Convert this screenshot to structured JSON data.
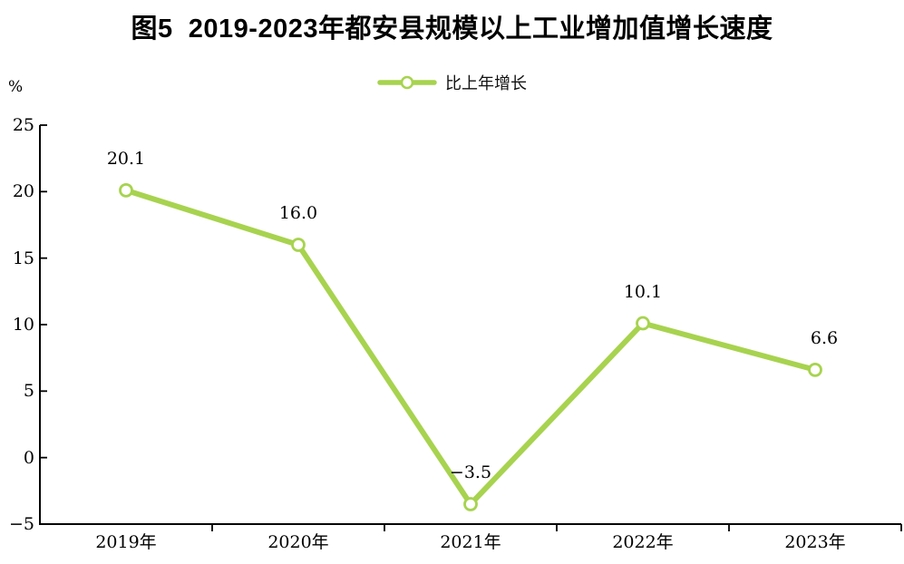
{
  "chart_data": {
    "type": "line",
    "title": "图5  2019-2023年都安县规模以上工业增加值增长速度",
    "categories": [
      "2019年",
      "2020年",
      "2021年",
      "2022年",
      "2023年"
    ],
    "series": [
      {
        "name": "比上年增长",
        "values": [
          20.1,
          16.0,
          -3.5,
          10.1,
          6.6
        ]
      }
    ],
    "data_labels": [
      "20.1",
      "16.0",
      "−3.5",
      "10.1",
      "6.6"
    ],
    "xlabel": "",
    "ylabel": "%",
    "ylim": [
      -5,
      25
    ],
    "yticks": [
      25,
      20,
      15,
      10,
      5,
      0,
      -5
    ],
    "ytick_labels": [
      "25",
      "20",
      "15",
      "10",
      "5",
      "0",
      "−5"
    ],
    "grid": false,
    "legend_position": "top-center",
    "colors": {
      "line": "#A7D34F",
      "marker_fill": "#FFFFFF",
      "marker_stroke": "#A7D34F",
      "axis": "#000000",
      "text": "#000000"
    }
  }
}
